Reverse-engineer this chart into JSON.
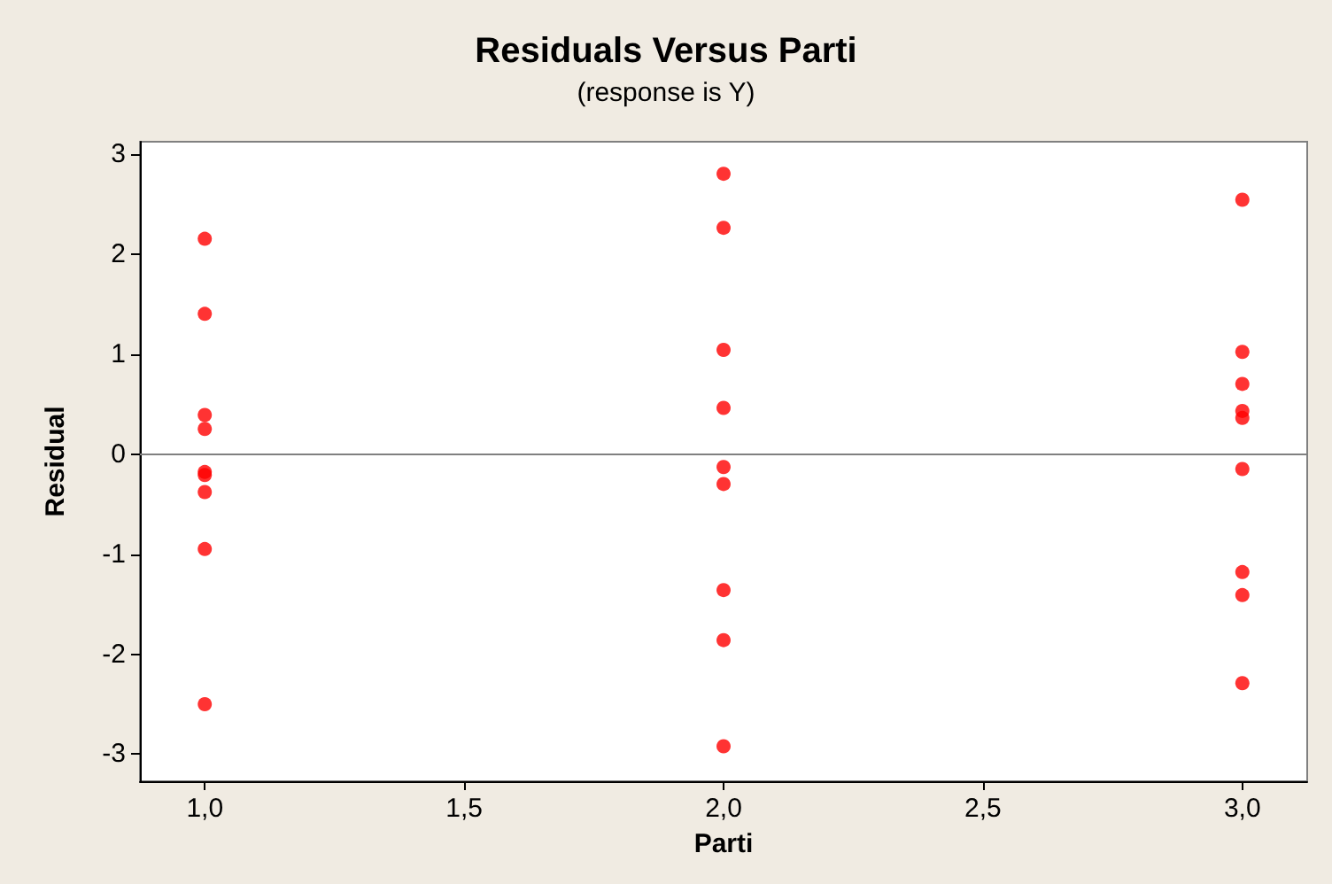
{
  "chart_data": {
    "type": "scatter",
    "title": "Residuals Versus Parti",
    "subtitle": "(response is Y)",
    "xlabel": "Parti",
    "ylabel": "Residual",
    "x": [
      1,
      1,
      1,
      1,
      1,
      1,
      1,
      1,
      1,
      2,
      2,
      2,
      2,
      2,
      2,
      2,
      2,
      2,
      3,
      3,
      3,
      3,
      3,
      3,
      3,
      3,
      3
    ],
    "series": [
      {
        "color": "#ff0000",
        "values": [
          2.15,
          1.4,
          0.39,
          0.25,
          -0.18,
          -0.21,
          -0.38,
          -0.95,
          -2.5,
          2.8,
          2.26,
          1.04,
          0.46,
          -0.13,
          -0.3,
          -1.36,
          -1.86,
          -2.92,
          2.54,
          1.02,
          0.7,
          0.43,
          0.36,
          -0.15,
          -1.18,
          -1.41,
          -2.29
        ]
      }
    ],
    "xlim": [
      0.875,
      3.125
    ],
    "ylim": [
      -3.27,
      3.12
    ],
    "xticks": [
      {
        "value": 1,
        "label": "1,0"
      },
      {
        "value": 1.5,
        "label": "1,5"
      },
      {
        "value": 2,
        "label": "2,0"
      },
      {
        "value": 2.5,
        "label": "2,5"
      },
      {
        "value": 3,
        "label": "3,0"
      }
    ],
    "yticks": [
      {
        "value": -3,
        "label": "-3"
      },
      {
        "value": -2,
        "label": "-2"
      },
      {
        "value": -1,
        "label": "-1"
      },
      0,
      1,
      2,
      3
    ],
    "ref_lines": [
      {
        "axis": "y",
        "value": 0,
        "color": "#808080"
      }
    ],
    "grid": false,
    "marker": "circle"
  }
}
